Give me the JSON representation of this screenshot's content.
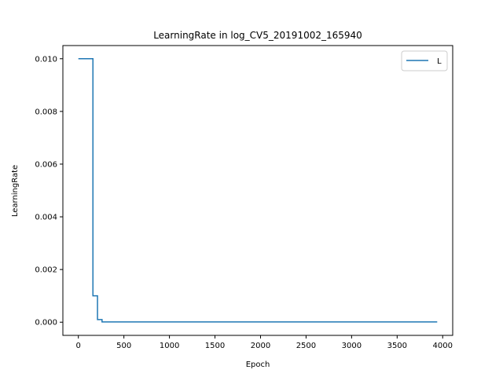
{
  "chart_data": {
    "type": "line",
    "title": "LearningRate in log_CV5_20191002_165940",
    "xlabel": "Epoch",
    "ylabel": "LearningRate",
    "xlim": [
      -170,
      4110
    ],
    "ylim": [
      -0.0005,
      0.0105
    ],
    "xticks": [
      0,
      500,
      1000,
      1500,
      2000,
      2500,
      3000,
      3500,
      4000
    ],
    "xtick_labels": [
      "0",
      "500",
      "1000",
      "1500",
      "2000",
      "2500",
      "3000",
      "3500",
      "4000"
    ],
    "yticks": [
      0.0,
      0.002,
      0.004,
      0.006,
      0.008,
      0.01
    ],
    "ytick_labels": [
      "0.000",
      "0.002",
      "0.004",
      "0.006",
      "0.008",
      "0.010"
    ],
    "grid": false,
    "legend_position": "top-right",
    "series": [
      {
        "name": "L",
        "color": "#1f77b4",
        "x": [
          0,
          160,
          160,
          210,
          210,
          260,
          260,
          3940
        ],
        "y": [
          0.01,
          0.01,
          0.001,
          0.001,
          0.0001,
          0.0001,
          1e-05,
          1e-05
        ]
      }
    ]
  }
}
